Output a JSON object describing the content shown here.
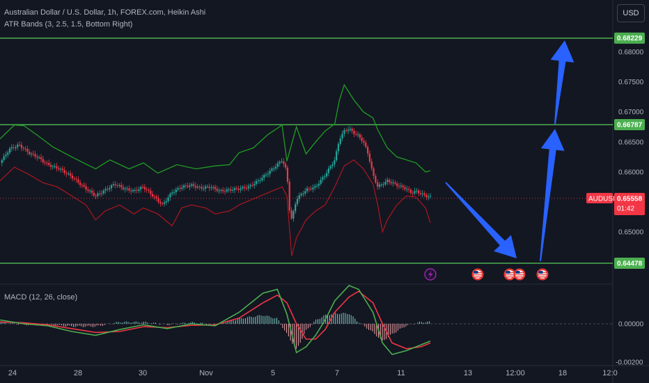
{
  "header": {
    "title": "Australian Dollar / U.S. Dollar, 1h, FOREX.com, Heikin Ashi",
    "indicator": "ATR Bands (3, 2.5, 1.5, Bottom Right)",
    "currency_button": "USD"
  },
  "macd": {
    "label": "MACD (12, 26, close)",
    "ticks": [
      "0.00000",
      "-0.00200"
    ]
  },
  "colors": {
    "background": "#131722",
    "level_line": "#4caf50",
    "up_candle": "#26a69a",
    "down_candle": "#f23645",
    "band_upper": "#1f9d22",
    "band_lower": "#a3171e",
    "arrow": "#2962ff",
    "macd_line": "#4caf50",
    "signal_line": "#f23645",
    "price_tag": "#f23645"
  },
  "chart_data": {
    "type": "line",
    "symbol": "AUDUSD",
    "last_price": "0.65558",
    "countdown": "01:42",
    "ylim": [
      0.642,
      0.684
    ],
    "y_ticks": [
      "0.68000",
      "0.67500",
      "0.67000",
      "0.66500",
      "0.66000",
      "0.65500",
      "0.65000",
      "0.64500"
    ],
    "x_ticks": [
      "24",
      "28",
      "30",
      "Nov",
      "5",
      "7",
      "11",
      "13",
      "12:00",
      "18",
      "12:0"
    ],
    "levels": [
      {
        "value": 0.68229,
        "label": "0.68229"
      },
      {
        "value": 0.66787,
        "label": "0.66787"
      },
      {
        "value": 0.64478,
        "label": "0.64478"
      }
    ],
    "price_path": [
      [
        0,
        0.6615
      ],
      [
        4,
        0.6638
      ],
      [
        8,
        0.6645
      ],
      [
        12,
        0.6632
      ],
      [
        16,
        0.6624
      ],
      [
        20,
        0.6612
      ],
      [
        25,
        0.6605
      ],
      [
        30,
        0.6592
      ],
      [
        35,
        0.6575
      ],
      [
        40,
        0.656
      ],
      [
        45,
        0.6572
      ],
      [
        48,
        0.658
      ],
      [
        52,
        0.6572
      ],
      [
        56,
        0.6568
      ],
      [
        60,
        0.6575
      ],
      [
        64,
        0.656
      ],
      [
        68,
        0.6545
      ],
      [
        72,
        0.6566
      ],
      [
        76,
        0.6575
      ],
      [
        80,
        0.6578
      ],
      [
        84,
        0.6573
      ],
      [
        88,
        0.6575
      ],
      [
        92,
        0.6568
      ],
      [
        96,
        0.657
      ],
      [
        100,
        0.6572
      ],
      [
        104,
        0.6575
      ],
      [
        108,
        0.6585
      ],
      [
        112,
        0.6598
      ],
      [
        116,
        0.6612
      ],
      [
        118,
        0.662
      ],
      [
        120,
        0.66
      ],
      [
        121,
        0.654
      ],
      [
        122,
        0.652
      ],
      [
        124,
        0.6555
      ],
      [
        128,
        0.657
      ],
      [
        132,
        0.6575
      ],
      [
        136,
        0.6595
      ],
      [
        140,
        0.662
      ],
      [
        142,
        0.6655
      ],
      [
        144,
        0.6668
      ],
      [
        146,
        0.6672
      ],
      [
        148,
        0.6665
      ],
      [
        150,
        0.666
      ],
      [
        152,
        0.665
      ],
      [
        154,
        0.663
      ],
      [
        156,
        0.6595
      ],
      [
        158,
        0.6575
      ],
      [
        160,
        0.658
      ],
      [
        162,
        0.6585
      ],
      [
        164,
        0.6582
      ],
      [
        166,
        0.6578
      ],
      [
        168,
        0.6575
      ],
      [
        170,
        0.6572
      ],
      [
        172,
        0.6565
      ],
      [
        174,
        0.6568
      ],
      [
        176,
        0.6564
      ],
      [
        178,
        0.656
      ],
      [
        180,
        0.6558
      ]
    ],
    "band_upper": [
      [
        0,
        0.6655
      ],
      [
        6,
        0.6678
      ],
      [
        10,
        0.6677
      ],
      [
        16,
        0.666
      ],
      [
        22,
        0.6642
      ],
      [
        30,
        0.6625
      ],
      [
        40,
        0.6605
      ],
      [
        46,
        0.662
      ],
      [
        54,
        0.6605
      ],
      [
        60,
        0.6615
      ],
      [
        66,
        0.6598
      ],
      [
        74,
        0.6612
      ],
      [
        82,
        0.6605
      ],
      [
        90,
        0.661
      ],
      [
        96,
        0.6612
      ],
      [
        100,
        0.6632
      ],
      [
        106,
        0.664
      ],
      [
        112,
        0.6662
      ],
      [
        118,
        0.6678
      ],
      [
        120,
        0.6618
      ],
      [
        124,
        0.6675
      ],
      [
        128,
        0.663
      ],
      [
        132,
        0.665
      ],
      [
        136,
        0.6668
      ],
      [
        140,
        0.668
      ],
      [
        142,
        0.672
      ],
      [
        144,
        0.6745
      ],
      [
        148,
        0.672
      ],
      [
        152,
        0.67
      ],
      [
        156,
        0.669
      ],
      [
        158,
        0.667
      ],
      [
        162,
        0.664
      ],
      [
        166,
        0.6625
      ],
      [
        170,
        0.662
      ],
      [
        174,
        0.6615
      ],
      [
        178,
        0.66
      ],
      [
        180,
        0.6602
      ]
    ],
    "band_lower": [
      [
        0,
        0.6585
      ],
      [
        6,
        0.6608
      ],
      [
        12,
        0.6596
      ],
      [
        18,
        0.6582
      ],
      [
        24,
        0.6575
      ],
      [
        30,
        0.656
      ],
      [
        36,
        0.6545
      ],
      [
        40,
        0.652
      ],
      [
        44,
        0.6535
      ],
      [
        50,
        0.6545
      ],
      [
        56,
        0.653
      ],
      [
        60,
        0.654
      ],
      [
        66,
        0.653
      ],
      [
        72,
        0.651
      ],
      [
        76,
        0.654
      ],
      [
        80,
        0.6545
      ],
      [
        86,
        0.654
      ],
      [
        90,
        0.653
      ],
      [
        96,
        0.6535
      ],
      [
        100,
        0.6545
      ],
      [
        106,
        0.6555
      ],
      [
        112,
        0.6565
      ],
      [
        118,
        0.6575
      ],
      [
        120,
        0.656
      ],
      [
        122,
        0.646
      ],
      [
        124,
        0.649
      ],
      [
        128,
        0.652
      ],
      [
        132,
        0.6535
      ],
      [
        136,
        0.6545
      ],
      [
        140,
        0.6575
      ],
      [
        144,
        0.661
      ],
      [
        148,
        0.662
      ],
      [
        152,
        0.6605
      ],
      [
        156,
        0.658
      ],
      [
        158,
        0.6545
      ],
      [
        160,
        0.65
      ],
      [
        162,
        0.652
      ],
      [
        166,
        0.6545
      ],
      [
        170,
        0.656
      ],
      [
        174,
        0.6558
      ],
      [
        178,
        0.654
      ],
      [
        180,
        0.6515
      ]
    ],
    "macd_line": [
      [
        0,
        0.0002
      ],
      [
        10,
        0.0
      ],
      [
        20,
        -0.0001
      ],
      [
        30,
        -0.0004
      ],
      [
        40,
        -0.0006
      ],
      [
        50,
        -0.0003
      ],
      [
        60,
        -5e-05
      ],
      [
        70,
        -0.00025
      ],
      [
        80,
        0.0
      ],
      [
        90,
        -0.0001
      ],
      [
        100,
        0.0006
      ],
      [
        110,
        0.0016
      ],
      [
        116,
        0.0018
      ],
      [
        120,
        0.0005
      ],
      [
        124,
        -0.0015
      ],
      [
        128,
        -0.0012
      ],
      [
        132,
        -0.0006
      ],
      [
        136,
        0.0002
      ],
      [
        140,
        0.0012
      ],
      [
        146,
        0.002
      ],
      [
        150,
        0.0018
      ],
      [
        156,
        0.0006
      ],
      [
        160,
        -0.001
      ],
      [
        164,
        -0.0016
      ],
      [
        170,
        -0.0014
      ],
      [
        176,
        -0.0011
      ],
      [
        180,
        -0.0009
      ]
    ],
    "signal_line": [
      [
        0,
        0.0001
      ],
      [
        10,
        5e-05
      ],
      [
        20,
        -5e-05
      ],
      [
        30,
        -0.00025
      ],
      [
        40,
        -0.00045
      ],
      [
        50,
        -0.0004
      ],
      [
        60,
        -0.00015
      ],
      [
        70,
        -0.0002
      ],
      [
        80,
        -8e-05
      ],
      [
        90,
        -5e-05
      ],
      [
        100,
        0.0003
      ],
      [
        110,
        0.0011
      ],
      [
        116,
        0.0015
      ],
      [
        120,
        0.0011
      ],
      [
        124,
        0.0
      ],
      [
        128,
        -0.0008
      ],
      [
        132,
        -0.0008
      ],
      [
        136,
        -0.0003
      ],
      [
        140,
        0.0006
      ],
      [
        146,
        0.0014
      ],
      [
        150,
        0.0017
      ],
      [
        156,
        0.0011
      ],
      [
        160,
        0.0
      ],
      [
        164,
        -0.001
      ],
      [
        170,
        -0.0013
      ],
      [
        176,
        -0.0012
      ],
      [
        180,
        -0.001
      ]
    ],
    "macd_ylim": [
      -0.002,
      0.002
    ]
  }
}
